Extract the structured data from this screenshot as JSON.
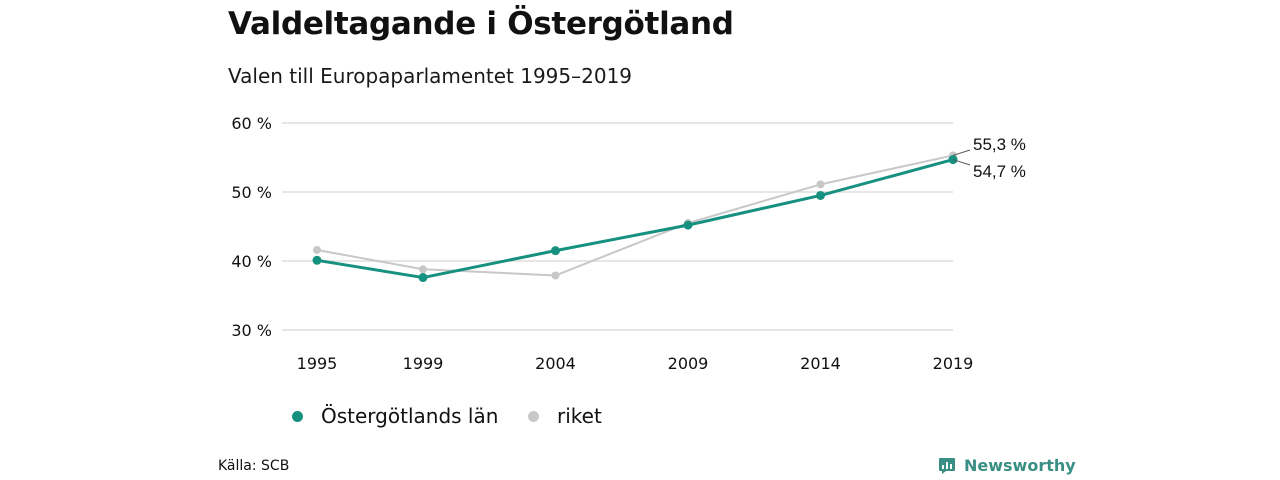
{
  "title": "Valdeltagande i Östergötland",
  "subtitle": "Valen till Europaparlamentet 1995–2019",
  "source": "Källa: SCB",
  "brand": "Newsworthy",
  "colors": {
    "teal": "#16917f",
    "gray": "#c8c8c8",
    "grid": "#dddddd",
    "brand": "#3a8f84"
  },
  "chart_data": {
    "type": "line",
    "x": [
      1995,
      1999,
      2004,
      2009,
      2014,
      2019
    ],
    "x_tick_labels": [
      "1995",
      "1999",
      "2004",
      "2009",
      "2014",
      "2019"
    ],
    "y_ticks": [
      30,
      40,
      50,
      60
    ],
    "y_tick_labels": [
      "30 %",
      "40 %",
      "50 %",
      "60 %"
    ],
    "ylim": [
      30,
      60
    ],
    "grid": true,
    "series": [
      {
        "name": "Östergötlands län",
        "color": "#16917f",
        "values": [
          40.1,
          37.6,
          41.5,
          45.2,
          49.5,
          54.7
        ],
        "end_label": "54,7 %"
      },
      {
        "name": "riket",
        "color": "#c8c8c8",
        "values": [
          41.6,
          38.8,
          37.9,
          45.5,
          51.1,
          55.3
        ],
        "end_label": "55,3 %"
      }
    ],
    "legend_position": "bottom"
  }
}
